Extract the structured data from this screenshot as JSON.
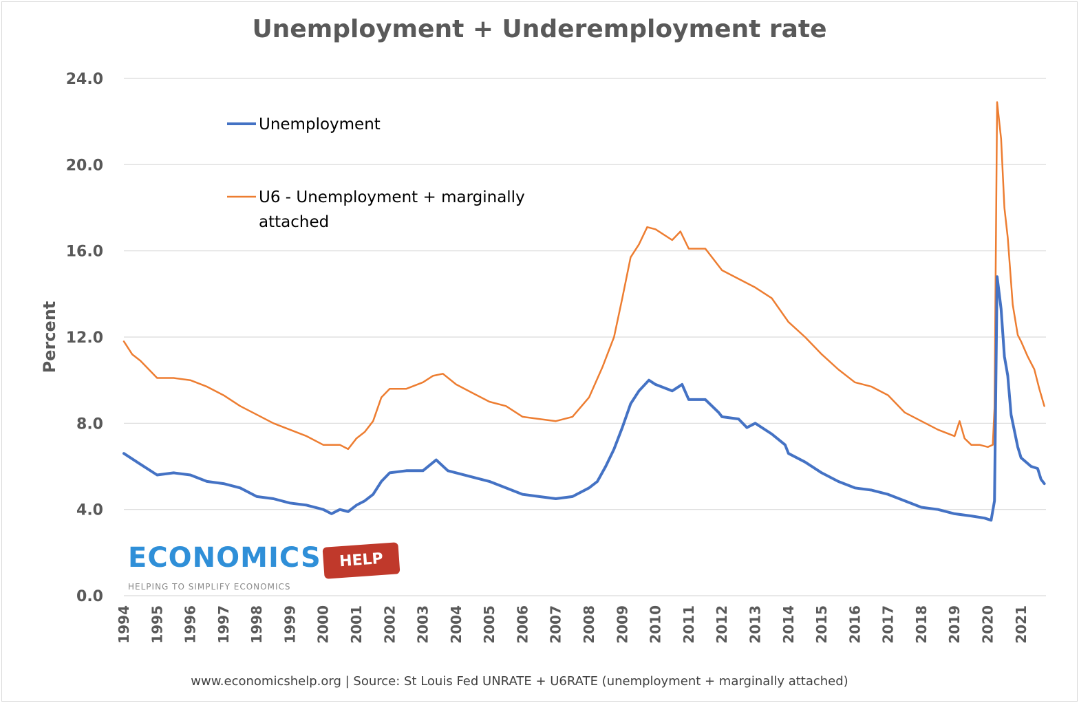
{
  "chart_data": {
    "type": "line",
    "title": "Unemployment + Underemployment rate",
    "ylabel": "Percent",
    "xlabel": "",
    "ylim": [
      0,
      24
    ],
    "yticks": [
      "0.0",
      "4.0",
      "8.0",
      "12.0",
      "16.0",
      "20.0",
      "24.0"
    ],
    "xlim": [
      1994,
      2021.75
    ],
    "xticks": [
      "1994",
      "1995",
      "1996",
      "1997",
      "1998",
      "1999",
      "2000",
      "2001",
      "2002",
      "2003",
      "2004",
      "2005",
      "2006",
      "2007",
      "2008",
      "2009",
      "2010",
      "2011",
      "2012",
      "2013",
      "2014",
      "2015",
      "2016",
      "2017",
      "2018",
      "2019",
      "2020",
      "2021"
    ],
    "grid": true,
    "legend_position": "top-left",
    "series": [
      {
        "name": "Unemployment",
        "color": "#4472c4",
        "points": [
          [
            1994.0,
            6.6
          ],
          [
            1994.5,
            6.1
          ],
          [
            1995.0,
            5.6
          ],
          [
            1995.5,
            5.7
          ],
          [
            1996.0,
            5.6
          ],
          [
            1996.5,
            5.3
          ],
          [
            1997.0,
            5.2
          ],
          [
            1997.5,
            5.0
          ],
          [
            1998.0,
            4.6
          ],
          [
            1998.5,
            4.5
          ],
          [
            1999.0,
            4.3
          ],
          [
            1999.5,
            4.2
          ],
          [
            2000.0,
            4.0
          ],
          [
            2000.25,
            3.8
          ],
          [
            2000.5,
            4.0
          ],
          [
            2000.75,
            3.9
          ],
          [
            2001.0,
            4.2
          ],
          [
            2001.25,
            4.4
          ],
          [
            2001.5,
            4.7
          ],
          [
            2001.75,
            5.3
          ],
          [
            2002.0,
            5.7
          ],
          [
            2002.5,
            5.8
          ],
          [
            2003.0,
            5.8
          ],
          [
            2003.4,
            6.3
          ],
          [
            2003.75,
            5.8
          ],
          [
            2004.0,
            5.7
          ],
          [
            2004.5,
            5.5
          ],
          [
            2005.0,
            5.3
          ],
          [
            2005.5,
            5.0
          ],
          [
            2006.0,
            4.7
          ],
          [
            2006.5,
            4.6
          ],
          [
            2007.0,
            4.5
          ],
          [
            2007.5,
            4.6
          ],
          [
            2008.0,
            5.0
          ],
          [
            2008.25,
            5.3
          ],
          [
            2008.5,
            6.0
          ],
          [
            2008.75,
            6.8
          ],
          [
            2009.0,
            7.8
          ],
          [
            2009.25,
            8.9
          ],
          [
            2009.5,
            9.5
          ],
          [
            2009.8,
            10.0
          ],
          [
            2010.0,
            9.8
          ],
          [
            2010.5,
            9.5
          ],
          [
            2010.8,
            9.8
          ],
          [
            2011.0,
            9.1
          ],
          [
            2011.5,
            9.1
          ],
          [
            2011.9,
            8.5
          ],
          [
            2012.0,
            8.3
          ],
          [
            2012.5,
            8.2
          ],
          [
            2012.75,
            7.8
          ],
          [
            2013.0,
            8.0
          ],
          [
            2013.5,
            7.5
          ],
          [
            2013.9,
            7.0
          ],
          [
            2014.0,
            6.6
          ],
          [
            2014.5,
            6.2
          ],
          [
            2015.0,
            5.7
          ],
          [
            2015.5,
            5.3
          ],
          [
            2016.0,
            5.0
          ],
          [
            2016.5,
            4.9
          ],
          [
            2017.0,
            4.7
          ],
          [
            2017.5,
            4.4
          ],
          [
            2018.0,
            4.1
          ],
          [
            2018.5,
            4.0
          ],
          [
            2019.0,
            3.8
          ],
          [
            2019.5,
            3.7
          ],
          [
            2019.9,
            3.6
          ],
          [
            2020.1,
            3.5
          ],
          [
            2020.2,
            4.4
          ],
          [
            2020.28,
            14.8
          ],
          [
            2020.4,
            13.3
          ],
          [
            2020.5,
            11.1
          ],
          [
            2020.6,
            10.2
          ],
          [
            2020.7,
            8.4
          ],
          [
            2020.9,
            6.9
          ],
          [
            2021.0,
            6.4
          ],
          [
            2021.3,
            6.0
          ],
          [
            2021.5,
            5.9
          ],
          [
            2021.6,
            5.4
          ],
          [
            2021.7,
            5.2
          ]
        ]
      },
      {
        "name": "U6 - Unemployment + marginally attached",
        "color": "#ed7d31",
        "points": [
          [
            1994.0,
            11.8
          ],
          [
            1994.25,
            11.2
          ],
          [
            1994.5,
            10.9
          ],
          [
            1994.75,
            10.5
          ],
          [
            1995.0,
            10.1
          ],
          [
            1995.5,
            10.1
          ],
          [
            1996.0,
            10.0
          ],
          [
            1996.5,
            9.7
          ],
          [
            1997.0,
            9.3
          ],
          [
            1997.5,
            8.8
          ],
          [
            1998.0,
            8.4
          ],
          [
            1998.5,
            8.0
          ],
          [
            1999.0,
            7.7
          ],
          [
            1999.5,
            7.4
          ],
          [
            2000.0,
            7.0
          ],
          [
            2000.5,
            7.0
          ],
          [
            2000.75,
            6.8
          ],
          [
            2001.0,
            7.3
          ],
          [
            2001.25,
            7.6
          ],
          [
            2001.5,
            8.1
          ],
          [
            2001.75,
            9.2
          ],
          [
            2002.0,
            9.6
          ],
          [
            2002.5,
            9.6
          ],
          [
            2003.0,
            9.9
          ],
          [
            2003.3,
            10.2
          ],
          [
            2003.6,
            10.3
          ],
          [
            2004.0,
            9.8
          ],
          [
            2004.5,
            9.4
          ],
          [
            2005.0,
            9.0
          ],
          [
            2005.5,
            8.8
          ],
          [
            2006.0,
            8.3
          ],
          [
            2006.5,
            8.2
          ],
          [
            2007.0,
            8.1
          ],
          [
            2007.5,
            8.3
          ],
          [
            2008.0,
            9.2
          ],
          [
            2008.4,
            10.6
          ],
          [
            2008.75,
            12.0
          ],
          [
            2009.0,
            13.8
          ],
          [
            2009.25,
            15.7
          ],
          [
            2009.5,
            16.3
          ],
          [
            2009.75,
            17.1
          ],
          [
            2010.0,
            17.0
          ],
          [
            2010.5,
            16.5
          ],
          [
            2010.75,
            16.9
          ],
          [
            2011.0,
            16.1
          ],
          [
            2011.5,
            16.1
          ],
          [
            2011.9,
            15.3
          ],
          [
            2012.0,
            15.1
          ],
          [
            2012.5,
            14.7
          ],
          [
            2013.0,
            14.3
          ],
          [
            2013.5,
            13.8
          ],
          [
            2014.0,
            12.7
          ],
          [
            2014.5,
            12.0
          ],
          [
            2015.0,
            11.2
          ],
          [
            2015.5,
            10.5
          ],
          [
            2016.0,
            9.9
          ],
          [
            2016.5,
            9.7
          ],
          [
            2017.0,
            9.3
          ],
          [
            2017.5,
            8.5
          ],
          [
            2018.0,
            8.1
          ],
          [
            2018.5,
            7.7
          ],
          [
            2019.0,
            7.4
          ],
          [
            2019.15,
            8.1
          ],
          [
            2019.3,
            7.3
          ],
          [
            2019.5,
            7.0
          ],
          [
            2019.75,
            7.0
          ],
          [
            2020.0,
            6.9
          ],
          [
            2020.15,
            7.0
          ],
          [
            2020.2,
            8.7
          ],
          [
            2020.28,
            22.9
          ],
          [
            2020.4,
            21.2
          ],
          [
            2020.5,
            18.0
          ],
          [
            2020.6,
            16.6
          ],
          [
            2020.75,
            13.5
          ],
          [
            2020.9,
            12.1
          ],
          [
            2021.0,
            11.8
          ],
          [
            2021.2,
            11.1
          ],
          [
            2021.4,
            10.5
          ],
          [
            2021.55,
            9.6
          ],
          [
            2021.7,
            8.8
          ]
        ]
      }
    ]
  },
  "legend": [
    {
      "label": "Unemployment"
    },
    {
      "label_line1": "U6 - Unemployment + marginally",
      "label_line2": "attached"
    }
  ],
  "logo": {
    "word": "ECONOMICS",
    "tag": "HELP",
    "tagline": "HELPING TO SIMPLIFY ECONOMICS"
  },
  "footer": "www.economicshelp.org  |  Source: St Louis Fed UNRATE + U6RATE (unemployment + marginally attached)"
}
